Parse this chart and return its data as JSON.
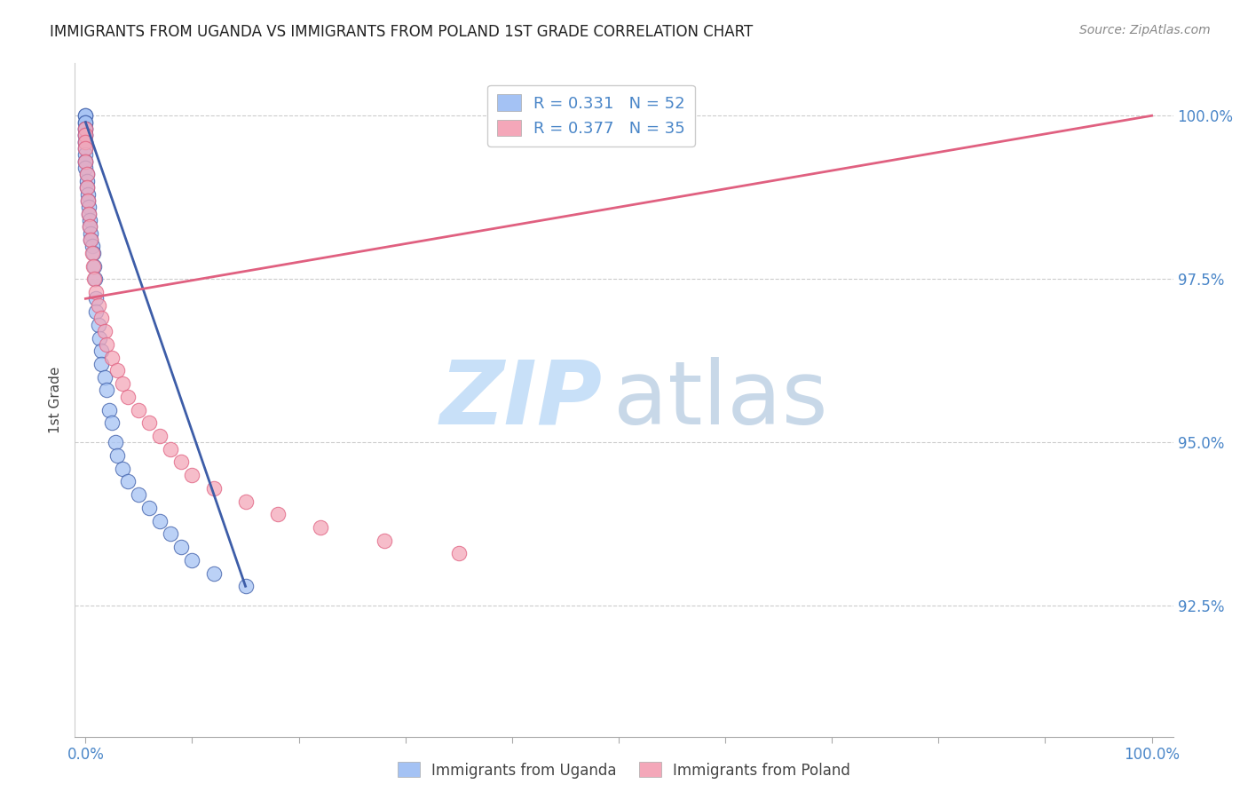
{
  "title": "IMMIGRANTS FROM UGANDA VS IMMIGRANTS FROM POLAND 1ST GRADE CORRELATION CHART",
  "source": "Source: ZipAtlas.com",
  "ylabel": "1st Grade",
  "ylabel_ticks": [
    "100.0%",
    "97.5%",
    "95.0%",
    "92.5%"
  ],
  "ylabel_vals": [
    1.0,
    0.975,
    0.95,
    0.925
  ],
  "ylim": [
    0.905,
    1.008
  ],
  "xlim": [
    -0.01,
    1.02
  ],
  "legend1_label": "R = 0.331   N = 52",
  "legend2_label": "R = 0.377   N = 35",
  "legend_color1": "#a4c2f4",
  "legend_color2": "#f4a7b9",
  "scatter_color_uganda": "#a4c2f4",
  "scatter_color_poland": "#f4a7b9",
  "trendline_color_uganda": "#3d5da8",
  "trendline_color_poland": "#e06080",
  "watermark_zip": "ZIP",
  "watermark_atlas": "atlas",
  "watermark_color_zip": "#c8e0f8",
  "watermark_color_atlas": "#c8d8e8",
  "background_color": "#ffffff",
  "uganda_x": [
    0.0,
    0.0,
    0.0,
    0.0,
    0.0,
    0.0,
    0.0,
    0.0,
    0.0,
    0.0,
    0.0,
    0.0,
    0.0,
    0.0,
    0.0,
    0.001,
    0.001,
    0.001,
    0.002,
    0.002,
    0.003,
    0.003,
    0.004,
    0.004,
    0.005,
    0.005,
    0.006,
    0.007,
    0.008,
    0.009,
    0.01,
    0.01,
    0.012,
    0.013,
    0.015,
    0.015,
    0.018,
    0.02,
    0.022,
    0.025,
    0.028,
    0.03,
    0.035,
    0.04,
    0.05,
    0.06,
    0.07,
    0.08,
    0.09,
    0.1,
    0.12,
    0.15
  ],
  "uganda_y": [
    1.0,
    1.0,
    0.999,
    0.999,
    0.998,
    0.998,
    0.997,
    0.997,
    0.996,
    0.996,
    0.995,
    0.994,
    0.993,
    0.993,
    0.992,
    0.991,
    0.99,
    0.989,
    0.988,
    0.987,
    0.986,
    0.985,
    0.984,
    0.983,
    0.982,
    0.981,
    0.98,
    0.979,
    0.977,
    0.975,
    0.972,
    0.97,
    0.968,
    0.966,
    0.964,
    0.962,
    0.96,
    0.958,
    0.955,
    0.953,
    0.95,
    0.948,
    0.946,
    0.944,
    0.942,
    0.94,
    0.938,
    0.936,
    0.934,
    0.932,
    0.93,
    0.928
  ],
  "poland_x": [
    0.0,
    0.0,
    0.0,
    0.0,
    0.0,
    0.001,
    0.001,
    0.002,
    0.003,
    0.004,
    0.005,
    0.006,
    0.007,
    0.008,
    0.01,
    0.012,
    0.015,
    0.018,
    0.02,
    0.025,
    0.03,
    0.035,
    0.04,
    0.05,
    0.06,
    0.07,
    0.08,
    0.09,
    0.1,
    0.12,
    0.15,
    0.18,
    0.22,
    0.28,
    0.35
  ],
  "poland_y": [
    0.998,
    0.997,
    0.996,
    0.995,
    0.993,
    0.991,
    0.989,
    0.987,
    0.985,
    0.983,
    0.981,
    0.979,
    0.977,
    0.975,
    0.973,
    0.971,
    0.969,
    0.967,
    0.965,
    0.963,
    0.961,
    0.959,
    0.957,
    0.955,
    0.953,
    0.951,
    0.949,
    0.947,
    0.945,
    0.943,
    0.941,
    0.939,
    0.937,
    0.935,
    0.933
  ],
  "trendline_uganda_x0": 0.0,
  "trendline_uganda_x1": 0.15,
  "trendline_uganda_y0": 0.999,
  "trendline_uganda_y1": 0.928,
  "trendline_poland_x0": 0.0,
  "trendline_poland_x1": 1.0,
  "trendline_poland_y0": 0.972,
  "trendline_poland_y1": 1.0
}
